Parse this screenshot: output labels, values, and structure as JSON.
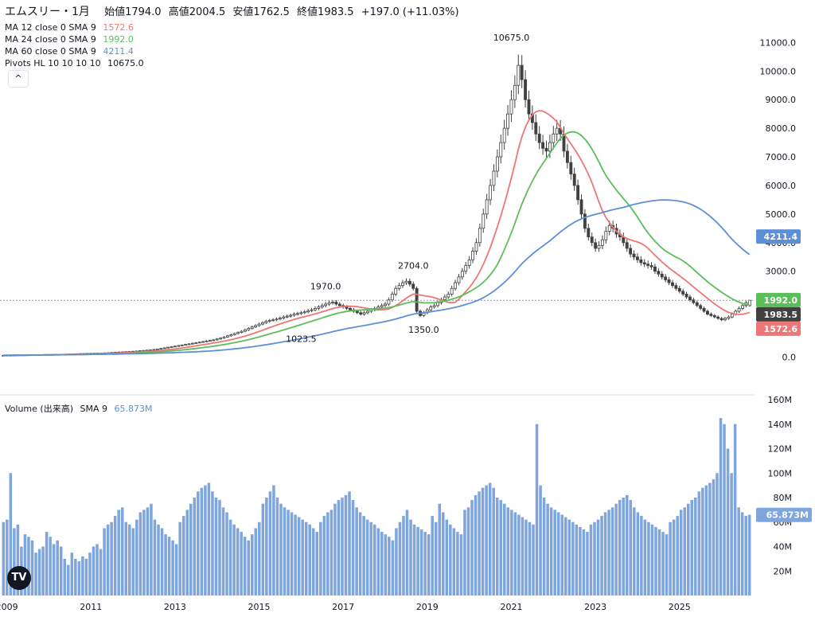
{
  "header": {
    "symbol": "エムスリー・1月",
    "open_label": "始値",
    "open": "1794.0",
    "high_label": "高値",
    "high": "2004.5",
    "low_label": "安値",
    "low": "1762.5",
    "close_label": "終値",
    "close": "1983.5",
    "change": "+197.0 (+11.03%)",
    "ma12_label": "MA 12 close 0 SMA 9",
    "ma12_value": "1572.6",
    "ma24_label": "MA 24 close 0 SMA 9",
    "ma24_value": "1992.0",
    "ma60_label": "MA 60 close 0 SMA 9",
    "ma60_value": "4211.4",
    "pivots_label": "Pivots HL 10 10 10 10",
    "pivots_value": "10675.0",
    "collapse_glyph": "^"
  },
  "volume_header": {
    "label": "Volume (出来高)",
    "sma_label": "SMA 9",
    "value": "65.873M"
  },
  "colors": {
    "up": "#ffffff",
    "down": "#404040",
    "wick": "#404040",
    "ma12": "#ef7676",
    "ma24": "#5cbe5a",
    "ma60": "#5c8fd6",
    "volume": "#7fa6dc",
    "axis_text": "#131722",
    "divider": "#e0e3eb"
  },
  "chart_data": [
    {
      "type": "candlestick",
      "title": "エムスリー・1月",
      "ylim": [
        -600,
        11650
      ],
      "yticks": [
        "0.0",
        "1000.0",
        "2000.0",
        "3000.0",
        "4000.0",
        "5000.0",
        "6000.0",
        "7000.0",
        "8000.0",
        "9000.0",
        "10000.0",
        "11000.0"
      ],
      "xticks": [
        "2009",
        "2011",
        "2013",
        "2015",
        "2017",
        "2019",
        "2021",
        "2023",
        "2025"
      ],
      "grid": false,
      "start_month": "2008-12",
      "close_series": [
        60,
        62,
        58,
        65,
        70,
        72,
        68,
        75,
        78,
        80,
        82,
        85,
        88,
        90,
        92,
        95,
        98,
        100,
        103,
        106,
        110,
        115,
        120,
        125,
        130,
        132,
        135,
        138,
        140,
        145,
        150,
        160,
        170,
        175,
        180,
        185,
        190,
        200,
        210,
        220,
        230,
        240,
        250,
        265,
        280,
        300,
        320,
        340,
        360,
        380,
        400,
        420,
        440,
        460,
        480,
        500,
        520,
        540,
        560,
        580,
        600,
        630,
        660,
        700,
        740,
        780,
        820,
        860,
        900,
        950,
        1000,
        1050,
        1100,
        1150,
        1200,
        1250,
        1280,
        1300,
        1330,
        1360,
        1400,
        1430,
        1460,
        1500,
        1520,
        1550,
        1580,
        1620,
        1650,
        1700,
        1750,
        1800,
        1850,
        1900,
        1920,
        1850,
        1800,
        1750,
        1700,
        1650,
        1600,
        1550,
        1500,
        1550,
        1600,
        1650,
        1700,
        1750,
        1800,
        1850,
        2000,
        2200,
        2400,
        2500,
        2600,
        2650,
        2550,
        2400,
        1600,
        1450,
        1550,
        1650,
        1750,
        1800,
        1900,
        2000,
        2100,
        2200,
        2400,
        2600,
        2800,
        3000,
        3200,
        3400,
        3700,
        4000,
        4500,
        5000,
        5500,
        6000,
        6500,
        7000,
        7500,
        8000,
        8500,
        9000,
        9500,
        10200,
        9700,
        9000,
        8500,
        8200,
        7800,
        7500,
        7300,
        7200,
        7500,
        7800,
        8000,
        7800,
        7200,
        6800,
        6400,
        6000,
        5500,
        5000,
        4500,
        4200,
        4000,
        3800,
        3900,
        4100,
        4400,
        4600,
        4500,
        4300,
        4200,
        4000,
        3800,
        3600,
        3500,
        3400,
        3300,
        3250,
        3200,
        3150,
        3000,
        2900,
        2800,
        2700,
        2600,
        2500,
        2400,
        2300,
        2200,
        2100,
        2000,
        1900,
        1800,
        1700,
        1600,
        1500,
        1450,
        1400,
        1350,
        1300,
        1350,
        1400,
        1500,
        1600,
        1700,
        1800,
        1900,
        1983.5
      ],
      "pivots": [
        {
          "label": "10675.0",
          "month": "2021-01",
          "value": 10675.0,
          "position": "above"
        },
        {
          "label": "1970.0",
          "month": "2016-08",
          "value": 1970.0,
          "position": "above"
        },
        {
          "label": "2704.0",
          "month": "2018-09",
          "value": 2704.0,
          "position": "above"
        },
        {
          "label": "1023.5",
          "month": "2016-01",
          "value": 1023.5,
          "position": "below"
        },
        {
          "label": "1350.0",
          "month": "2018-12",
          "value": 1350.0,
          "position": "below"
        }
      ],
      "price_labels": [
        {
          "label": "4211.4",
          "value": 4211.4,
          "color_key": "ma60"
        },
        {
          "label": "1992.0",
          "value": 1992.0,
          "color_key": "ma24"
        },
        {
          "label": "1983.5",
          "value": 1983.5,
          "color_key": "down"
        },
        {
          "label": "1572.6",
          "value": 1572.6,
          "color_key": "ma12"
        }
      ],
      "series": [
        {
          "name": "MA 12",
          "ma_period": 12,
          "color_key": "ma12"
        },
        {
          "name": "MA 24",
          "ma_period": 24,
          "color_key": "ma24"
        },
        {
          "name": "MA 60",
          "ma_period": 60,
          "color_key": "ma60"
        }
      ]
    },
    {
      "type": "bar",
      "title": "Volume (出来高)",
      "ylim": [
        0,
        160
      ],
      "yticks": [
        "20M",
        "40M",
        "60M",
        "80M",
        "100M",
        "120M",
        "140M",
        "160M"
      ],
      "unit": "M",
      "values": [
        60,
        62,
        100,
        55,
        58,
        40,
        50,
        48,
        45,
        35,
        38,
        40,
        52,
        48,
        42,
        45,
        40,
        30,
        25,
        35,
        30,
        28,
        32,
        30,
        35,
        40,
        42,
        38,
        55,
        58,
        60,
        65,
        70,
        72,
        60,
        58,
        55,
        62,
        68,
        70,
        72,
        75,
        62,
        58,
        55,
        50,
        48,
        45,
        42,
        60,
        65,
        70,
        75,
        80,
        85,
        88,
        90,
        92,
        85,
        80,
        78,
        72,
        68,
        62,
        58,
        55,
        52,
        48,
        45,
        50,
        55,
        60,
        75,
        80,
        85,
        90,
        80,
        75,
        72,
        70,
        68,
        66,
        64,
        62,
        60,
        58,
        55,
        52,
        60,
        65,
        68,
        70,
        75,
        78,
        80,
        82,
        85,
        78,
        72,
        68,
        65,
        62,
        60,
        58,
        55,
        52,
        50,
        48,
        45,
        55,
        60,
        65,
        70,
        62,
        58,
        56,
        54,
        52,
        50,
        65,
        60,
        75,
        68,
        62,
        58,
        55,
        52,
        50,
        70,
        72,
        78,
        82,
        85,
        88,
        90,
        92,
        88,
        80,
        78,
        75,
        72,
        70,
        68,
        66,
        64,
        62,
        60,
        58,
        140,
        90,
        80,
        75,
        72,
        70,
        68,
        66,
        64,
        62,
        60,
        58,
        56,
        54,
        52,
        58,
        60,
        62,
        65,
        68,
        70,
        72,
        75,
        78,
        80,
        82,
        78,
        72,
        68,
        65,
        62,
        60,
        58,
        56,
        54,
        52,
        50,
        60,
        62,
        65,
        70,
        72,
        75,
        78,
        80,
        85,
        88,
        90,
        92,
        95,
        100,
        145,
        140,
        120,
        100,
        140,
        72,
        68,
        65,
        66
      ],
      "sma_value": 65.873
    }
  ]
}
